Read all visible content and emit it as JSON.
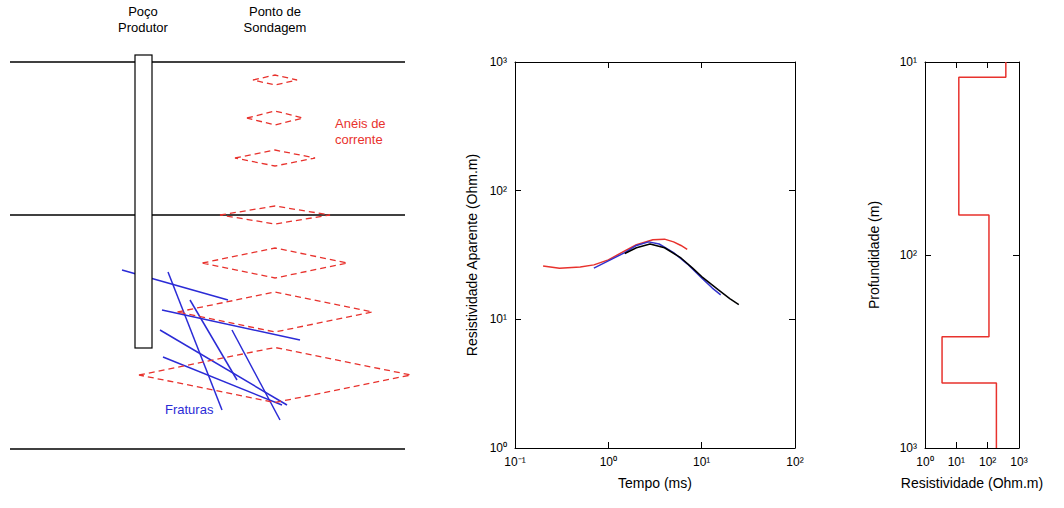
{
  "diagram": {
    "well_label": "Poço Produtor",
    "sounding_label": "Ponto de Sondagem",
    "rings_label": "Anéis de corrente",
    "fractures_label": "Fraturas"
  },
  "chart_data": [
    {
      "type": "line",
      "log": true,
      "grid": false,
      "xlabel": "Tempo (ms)",
      "ylabel": "Resistividade Aparente (Ohm.m)",
      "xlim": [
        0.1,
        100
      ],
      "ylim": [
        1,
        1000
      ],
      "xticks": [
        {
          "value": 0.1,
          "label": "10⁻¹"
        },
        {
          "value": 1,
          "label": "10⁰"
        },
        {
          "value": 10,
          "label": "10¹"
        },
        {
          "value": 100,
          "label": "10²"
        }
      ],
      "yticks": [
        {
          "value": 1,
          "label": "10⁰"
        },
        {
          "value": 10,
          "label": "10¹"
        },
        {
          "value": 100,
          "label": "10²"
        },
        {
          "value": 1000,
          "label": "10³"
        }
      ],
      "series": [
        {
          "color": "#e8322d",
          "x": [
            0.2,
            0.3,
            0.5,
            0.7,
            1,
            1.5,
            2,
            3,
            4,
            5,
            6,
            7
          ],
          "values": [
            26,
            25,
            25.5,
            26.5,
            29,
            34,
            38,
            41.5,
            42,
            40,
            37.5,
            35
          ]
        },
        {
          "color": "#3333cc",
          "x": [
            0.7,
            1,
            1.5,
            2,
            2.7,
            3.5,
            5,
            7,
            10,
            13,
            16
          ],
          "values": [
            25,
            28.5,
            33,
            37.5,
            40,
            38.5,
            33,
            27,
            21,
            17.5,
            15.5
          ]
        },
        {
          "color": "#000000",
          "x": [
            1.5,
            2,
            2.8,
            4,
            6,
            8,
            10,
            15,
            20,
            25
          ],
          "values": [
            32.5,
            36,
            38.5,
            36,
            30,
            25,
            21.5,
            17,
            14.5,
            13
          ]
        }
      ]
    },
    {
      "type": "line",
      "log": true,
      "grid": false,
      "xlabel": "Resistividade (Ohm.m)",
      "ylabel": "Profundidade (m)",
      "xlim": [
        1,
        1000
      ],
      "ylim": [
        1000,
        10
      ],
      "xticks": [
        {
          "value": 1,
          "label": "10⁰"
        },
        {
          "value": 10,
          "label": "10¹"
        },
        {
          "value": 100,
          "label": "10²"
        },
        {
          "value": 1000,
          "label": "10³"
        }
      ],
      "yticks": [
        {
          "value": 10,
          "label": "10¹"
        },
        {
          "value": 100,
          "label": "10²"
        },
        {
          "value": 1000,
          "label": "10³"
        }
      ],
      "series": [
        {
          "color": "#e8322d",
          "x": [
            380,
            380,
            12,
            12,
            110,
            110,
            3.5,
            3.5,
            190,
            190
          ],
          "values": [
            10,
            12,
            12,
            62,
            62,
            265,
            265,
            460,
            460,
            1000
          ]
        }
      ]
    }
  ]
}
